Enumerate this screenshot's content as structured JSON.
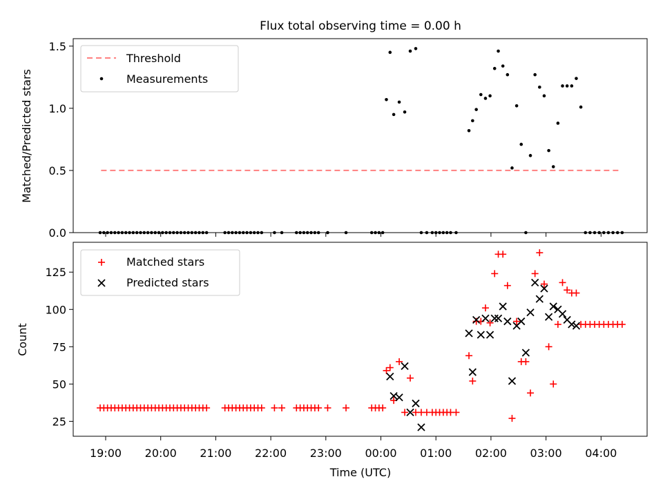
{
  "figure": {
    "title": "Flux total observing time = 0.00 h",
    "xlabel": "Time (UTC)",
    "x_tick_labels": [
      "19:00",
      "20:00",
      "21:00",
      "22:00",
      "23:00",
      "00:00",
      "01:00",
      "02:00",
      "03:00",
      "04:00"
    ]
  },
  "colors": {
    "threshold": "#ff7f7f",
    "matched": "#ff0000",
    "predicted": "#000000",
    "measurements": "#000000"
  },
  "chart_data": [
    {
      "type": "scatter",
      "ylabel": "Matched/Predicted stars",
      "ylim": [
        0,
        1.56
      ],
      "y_ticks": [
        0.0,
        0.5,
        1.0,
        1.5
      ],
      "y_tick_labels": [
        "0.0",
        "0.5",
        "1.0",
        "1.5"
      ],
      "legend": {
        "placement": "upper left",
        "entries": [
          "Threshold",
          "Measurements"
        ]
      },
      "threshold": {
        "name": "Threshold",
        "y": 0.5,
        "x_range": [
          "18:55",
          "04:20"
        ]
      },
      "measurements": {
        "name": "Measurements",
        "x": [
          "18:54",
          "18:58",
          "19:02",
          "19:06",
          "19:10",
          "19:14",
          "19:18",
          "19:22",
          "19:26",
          "19:30",
          "19:34",
          "19:38",
          "19:42",
          "19:46",
          "19:50",
          "19:54",
          "19:58",
          "20:02",
          "20:06",
          "20:10",
          "20:14",
          "20:18",
          "20:22",
          "20:26",
          "20:30",
          "20:34",
          "20:38",
          "20:42",
          "20:46",
          "20:50",
          "21:10",
          "21:14",
          "21:18",
          "21:22",
          "21:26",
          "21:30",
          "21:34",
          "21:38",
          "21:42",
          "21:46",
          "21:50",
          "22:04",
          "22:12",
          "22:28",
          "22:32",
          "22:36",
          "22:40",
          "22:44",
          "22:48",
          "22:52",
          "23:02",
          "23:22",
          "23:50",
          "23:54",
          "23:58",
          "00:02",
          "00:06",
          "00:10",
          "00:14",
          "00:20",
          "00:26",
          "00:32",
          "00:38",
          "00:44",
          "00:50",
          "00:56",
          "01:00",
          "01:04",
          "01:08",
          "01:12",
          "01:16",
          "01:22",
          "01:36",
          "01:40",
          "01:44",
          "01:49",
          "01:54",
          "01:59",
          "02:04",
          "02:08",
          "02:13",
          "02:18",
          "02:23",
          "02:28",
          "02:33",
          "02:38",
          "02:43",
          "02:48",
          "02:53",
          "02:58",
          "03:03",
          "03:08",
          "03:13",
          "03:18",
          "03:23",
          "03:28",
          "03:33",
          "03:38",
          "03:43",
          "03:48",
          "03:53",
          "03:58",
          "04:03",
          "04:08",
          "04:13",
          "04:18",
          "04:23"
        ],
        "y": [
          0,
          0,
          0,
          0,
          0,
          0,
          0,
          0,
          0,
          0,
          0,
          0,
          0,
          0,
          0,
          0,
          0,
          0,
          0,
          0,
          0,
          0,
          0,
          0,
          0,
          0,
          0,
          0,
          0,
          0,
          0,
          0,
          0,
          0,
          0,
          0,
          0,
          0,
          0,
          0,
          0,
          0,
          0,
          0,
          0,
          0,
          0,
          0,
          0,
          0,
          0,
          0,
          0,
          0,
          0,
          0,
          1.07,
          1.45,
          0.95,
          1.05,
          0.97,
          1.46,
          1.48,
          0,
          0,
          0,
          0,
          0,
          0,
          0,
          0,
          0,
          0.82,
          0.9,
          0.99,
          1.11,
          1.08,
          1.1,
          1.32,
          1.46,
          1.34,
          1.27,
          0.52,
          1.02,
          0.71,
          0,
          0.62,
          1.27,
          1.17,
          1.1,
          0.66,
          0.53,
          0.88,
          1.18,
          1.18,
          1.18,
          1.24,
          1.01,
          0,
          0,
          0,
          0,
          0,
          0,
          0,
          0,
          0
        ]
      }
    },
    {
      "type": "scatter",
      "ylabel": "Count",
      "ylim": [
        15,
        145
      ],
      "y_ticks": [
        25,
        50,
        75,
        100,
        125
      ],
      "y_tick_labels": [
        "25",
        "50",
        "75",
        "100",
        "125"
      ],
      "legend": {
        "placement": "upper left",
        "entries": [
          "Matched stars",
          "Predicted stars"
        ]
      },
      "series": [
        {
          "name": "Matched stars",
          "marker": "plus",
          "x": [
            "18:54",
            "18:58",
            "19:02",
            "19:06",
            "19:10",
            "19:14",
            "19:18",
            "19:22",
            "19:26",
            "19:30",
            "19:34",
            "19:38",
            "19:42",
            "19:46",
            "19:50",
            "19:54",
            "19:58",
            "20:02",
            "20:06",
            "20:10",
            "20:14",
            "20:18",
            "20:22",
            "20:26",
            "20:30",
            "20:34",
            "20:38",
            "20:42",
            "20:46",
            "20:50",
            "21:10",
            "21:14",
            "21:18",
            "21:22",
            "21:26",
            "21:30",
            "21:34",
            "21:38",
            "21:42",
            "21:46",
            "21:50",
            "22:04",
            "22:12",
            "22:28",
            "22:32",
            "22:36",
            "22:40",
            "22:44",
            "22:48",
            "22:52",
            "23:02",
            "23:22",
            "23:50",
            "23:54",
            "23:58",
            "00:02",
            "00:06",
            "00:10",
            "00:14",
            "00:20",
            "00:26",
            "00:32",
            "00:38",
            "00:44",
            "00:50",
            "00:56",
            "01:00",
            "01:04",
            "01:08",
            "01:12",
            "01:16",
            "01:22",
            "01:36",
            "01:40",
            "01:44",
            "01:49",
            "01:54",
            "01:59",
            "02:04",
            "02:08",
            "02:13",
            "02:18",
            "02:23",
            "02:28",
            "02:33",
            "02:38",
            "02:43",
            "02:48",
            "02:53",
            "02:58",
            "03:03",
            "03:08",
            "03:13",
            "03:18",
            "03:23",
            "03:28",
            "03:33",
            "03:38",
            "03:43",
            "03:48",
            "03:53",
            "03:58",
            "04:03",
            "04:08",
            "04:13",
            "04:18",
            "04:23"
          ],
          "y": [
            34,
            34,
            34,
            34,
            34,
            34,
            34,
            34,
            34,
            34,
            34,
            34,
            34,
            34,
            34,
            34,
            34,
            34,
            34,
            34,
            34,
            34,
            34,
            34,
            34,
            34,
            34,
            34,
            34,
            34,
            34,
            34,
            34,
            34,
            34,
            34,
            34,
            34,
            34,
            34,
            34,
            34,
            34,
            34,
            34,
            34,
            34,
            34,
            34,
            34,
            34,
            34,
            34,
            34,
            34,
            34,
            59,
            61,
            39,
            65,
            31,
            54,
            31,
            31,
            31,
            31,
            31,
            31,
            31,
            31,
            31,
            31,
            69,
            52,
            92,
            92,
            101,
            91,
            124,
            137,
            137,
            116,
            27,
            92,
            65,
            65,
            44,
            124,
            138,
            117,
            75,
            50,
            90,
            118,
            113,
            111,
            111,
            90,
            90,
            90,
            90,
            90,
            90,
            90,
            90,
            90,
            90
          ]
        },
        {
          "name": "Predicted stars",
          "marker": "x",
          "x": [
            "00:10",
            "00:14",
            "00:20",
            "00:26",
            "00:32",
            "00:38",
            "00:44",
            "01:36",
            "01:40",
            "01:44",
            "01:49",
            "01:54",
            "01:59",
            "02:04",
            "02:08",
            "02:13",
            "02:18",
            "02:23",
            "02:28",
            "02:33",
            "02:38",
            "02:43",
            "02:48",
            "02:53",
            "02:58",
            "03:03",
            "03:08",
            "03:13",
            "03:18",
            "03:23",
            "03:28",
            "03:33"
          ],
          "y": [
            55,
            42,
            41,
            62,
            31,
            37,
            21,
            84,
            58,
            93,
            83,
            94,
            83,
            94,
            94,
            102,
            92,
            52,
            89,
            92,
            71,
            98,
            118,
            107,
            114,
            95,
            102,
            100,
            97,
            93,
            90,
            89
          ]
        }
      ]
    }
  ]
}
